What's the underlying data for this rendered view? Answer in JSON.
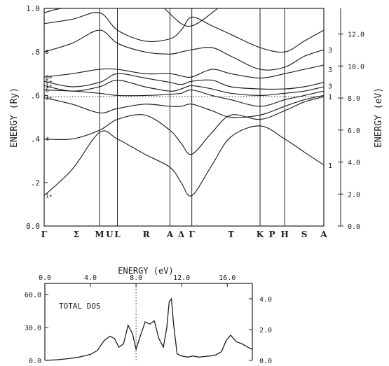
{
  "chart_data": [
    {
      "type": "line",
      "xlabel": "",
      "ylabel": "ENERGY  (Ry)",
      "ylabel_right": "ENERGY  (eV)",
      "ylim": [
        0.0,
        1.0
      ],
      "y_ticks": [
        {
          "v": 0.0,
          "label": "0.0"
        },
        {
          "v": 0.2,
          "label": ".2"
        },
        {
          "v": 0.4,
          "label": ".4"
        },
        {
          "v": 0.6,
          "label": ".6"
        },
        {
          "v": 0.8,
          "label": ".8"
        },
        {
          "v": 1.0,
          "label": "1.0"
        }
      ],
      "y_right_ticks": [
        {
          "v": 0.0,
          "label": "0.0"
        },
        {
          "v": 2.0,
          "label": "2.0"
        },
        {
          "v": 4.0,
          "label": "4.0"
        },
        {
          "v": 6.0,
          "label": "6.0"
        },
        {
          "v": 8.0,
          "label": "8.0"
        },
        {
          "v": 10.0,
          "label": "10.0"
        },
        {
          "v": 12.0,
          "label": "12.0"
        }
      ],
      "y_right_lim": [
        0.0,
        13.6
      ],
      "fermi_level": 0.595,
      "k_points": [
        {
          "label": "Γ",
          "x": 0.0
        },
        {
          "label": "Σ",
          "x": 0.115
        },
        {
          "label": "M",
          "x": 0.198
        },
        {
          "label": "U",
          "x": 0.234
        },
        {
          "label": "L",
          "x": 0.262
        },
        {
          "label": "R",
          "x": 0.365
        },
        {
          "label": "A",
          "x": 0.45
        },
        {
          "label": "Δ",
          "x": 0.49
        },
        {
          "label": "Γ",
          "x": 0.528
        },
        {
          "label": "T",
          "x": 0.668
        },
        {
          "label": "K",
          "x": 0.772
        },
        {
          "label": "P",
          "x": 0.815
        },
        {
          "label": "H",
          "x": 0.86
        },
        {
          "label": "S",
          "x": 0.93
        },
        {
          "label": "A",
          "x": 1.0
        }
      ],
      "vertical_lines": [
        0.0,
        0.198,
        0.262,
        0.45,
        0.528,
        0.772,
        0.86,
        1.0
      ],
      "left_labels": [
        {
          "text": "1+",
          "y": 0.14
        },
        {
          "text": "4-",
          "y": 0.4
        },
        {
          "text": "3+",
          "y": 0.59
        },
        {
          "text": "6-",
          "y": 0.625
        },
        {
          "text": "1+",
          "y": 0.645
        },
        {
          "text": "5+",
          "y": 0.665
        },
        {
          "text": "6+",
          "y": 0.685
        },
        {
          "text": "5",
          "y": 0.8
        }
      ],
      "right_labels": [
        {
          "text": "1",
          "y": 0.28
        },
        {
          "text": "1",
          "y": 0.595
        },
        {
          "text": "3",
          "y": 0.645
        },
        {
          "text": "3",
          "y": 0.72
        },
        {
          "text": "3",
          "y": 0.81
        }
      ],
      "series": [
        {
          "x": [
            0,
            0.1,
            0.198,
            0.262,
            0.36,
            0.45,
            0.49,
            0.528,
            0.6,
            0.668,
            0.772,
            0.86,
            0.93,
            1.0
          ],
          "values": [
            0.14,
            0.26,
            0.43,
            0.4,
            0.33,
            0.27,
            0.2,
            0.14,
            0.28,
            0.41,
            0.46,
            0.4,
            0.34,
            0.28
          ]
        },
        {
          "x": [
            0,
            0.1,
            0.198,
            0.262,
            0.36,
            0.45,
            0.49,
            0.528,
            0.6,
            0.668,
            0.772,
            0.86,
            0.93,
            1.0
          ],
          "values": [
            0.4,
            0.4,
            0.44,
            0.49,
            0.51,
            0.44,
            0.38,
            0.33,
            0.43,
            0.51,
            0.49,
            0.53,
            0.57,
            0.595
          ]
        },
        {
          "x": [
            0,
            0.1,
            0.198,
            0.262,
            0.36,
            0.45,
            0.49,
            0.528,
            0.6,
            0.668,
            0.772,
            0.86,
            0.93,
            1.0
          ],
          "values": [
            0.59,
            0.56,
            0.52,
            0.54,
            0.56,
            0.55,
            0.55,
            0.56,
            0.53,
            0.5,
            0.51,
            0.55,
            0.58,
            0.6
          ]
        },
        {
          "x": [
            0,
            0.1,
            0.198,
            0.262,
            0.36,
            0.45,
            0.49,
            0.528,
            0.6,
            0.668,
            0.772,
            0.86,
            0.93,
            1.0
          ],
          "values": [
            0.625,
            0.62,
            0.61,
            0.6,
            0.6,
            0.605,
            0.61,
            0.625,
            0.6,
            0.58,
            0.55,
            0.58,
            0.6,
            0.62
          ]
        },
        {
          "x": [
            0,
            0.1,
            0.198,
            0.262,
            0.36,
            0.45,
            0.49,
            0.528,
            0.6,
            0.668,
            0.772,
            0.86,
            0.93,
            1.0
          ],
          "values": [
            0.645,
            0.62,
            0.64,
            0.67,
            0.64,
            0.62,
            0.63,
            0.645,
            0.63,
            0.61,
            0.6,
            0.61,
            0.62,
            0.64
          ]
        },
        {
          "x": [
            0,
            0.1,
            0.198,
            0.262,
            0.36,
            0.45,
            0.49,
            0.528,
            0.6,
            0.668,
            0.772,
            0.86,
            0.93,
            1.0
          ],
          "values": [
            0.665,
            0.64,
            0.66,
            0.7,
            0.68,
            0.66,
            0.65,
            0.665,
            0.67,
            0.64,
            0.63,
            0.63,
            0.64,
            0.66
          ]
        },
        {
          "x": [
            0,
            0.1,
            0.198,
            0.262,
            0.36,
            0.45,
            0.49,
            0.528,
            0.6,
            0.668,
            0.772,
            0.86,
            0.93,
            1.0
          ],
          "values": [
            0.685,
            0.7,
            0.72,
            0.72,
            0.7,
            0.7,
            0.69,
            0.685,
            0.72,
            0.7,
            0.68,
            0.7,
            0.72,
            0.74
          ]
        },
        {
          "x": [
            0,
            0.1,
            0.198,
            0.262,
            0.36,
            0.45,
            0.49,
            0.528,
            0.6,
            0.668,
            0.772,
            0.86,
            0.93,
            1.0
          ],
          "values": [
            0.8,
            0.84,
            0.9,
            0.84,
            0.8,
            0.79,
            0.8,
            0.81,
            0.82,
            0.78,
            0.72,
            0.73,
            0.78,
            0.81
          ]
        },
        {
          "x": [
            0,
            0.1,
            0.198,
            0.262,
            0.36,
            0.45,
            0.49,
            0.528,
            0.6,
            0.668,
            0.772,
            0.86,
            0.93,
            1.0
          ],
          "values": [
            0.93,
            0.95,
            0.98,
            0.9,
            0.85,
            0.86,
            0.9,
            0.96,
            0.92,
            0.88,
            0.82,
            0.8,
            0.85,
            0.9
          ]
        },
        {
          "x": [
            0,
            0.06,
            0.11
          ],
          "values": [
            0.98,
            1.0,
            1.0
          ]
        },
        {
          "x": [
            0.43,
            0.49,
            0.528,
            0.57,
            0.62
          ],
          "values": [
            1.0,
            0.93,
            0.92,
            0.95,
            1.0
          ]
        }
      ]
    },
    {
      "type": "area",
      "title": "ENERGY  (eV)",
      "label": "TOTAL DOS",
      "xlim": [
        0.0,
        18.2
      ],
      "x_ticks": [
        {
          "v": 0.0,
          "label": "0.0"
        },
        {
          "v": 4.0,
          "label": "4.0"
        },
        {
          "v": 8.0,
          "label": "8.0"
        },
        {
          "v": 12.0,
          "label": "12.0"
        },
        {
          "v": 16.0,
          "label": "16.0"
        }
      ],
      "ylim": [
        0.0,
        70.0
      ],
      "y_ticks": [
        {
          "v": 0.0,
          "label": "0.0"
        },
        {
          "v": 30.0,
          "label": "30.0"
        },
        {
          "v": 60.0,
          "label": "60.0"
        }
      ],
      "y_right_lim": [
        0.0,
        5.0
      ],
      "y_right_ticks": [
        {
          "v": 0.0,
          "label": "0.0"
        },
        {
          "v": 2.0,
          "label": "2.0"
        },
        {
          "v": 4.0,
          "label": "4.0"
        }
      ],
      "fermi_level": 8.0,
      "x": [
        0.0,
        1.0,
        2.0,
        3.0,
        4.0,
        4.6,
        5.2,
        5.7,
        6.1,
        6.5,
        6.9,
        7.3,
        7.7,
        8.0,
        8.4,
        8.8,
        9.2,
        9.6,
        10.0,
        10.4,
        10.7,
        10.9,
        11.1,
        11.3,
        11.6,
        12.0,
        12.5,
        13.0,
        13.5,
        14.0,
        14.5,
        15.0,
        15.5,
        15.9,
        16.3,
        16.8,
        17.3,
        17.8,
        18.2
      ],
      "values": [
        0.0,
        0.5,
        1.5,
        3.0,
        5.5,
        9.0,
        18.0,
        22.0,
        20.0,
        12.0,
        15.0,
        32.0,
        24.0,
        10.0,
        23.0,
        35.0,
        33.0,
        36.0,
        20.0,
        12.0,
        30.0,
        53.0,
        56.0,
        32.0,
        6.0,
        4.0,
        3.0,
        4.0,
        3.0,
        3.5,
        4.0,
        5.0,
        8.0,
        18.0,
        23.0,
        17.0,
        15.0,
        12.0,
        10.0
      ]
    }
  ]
}
